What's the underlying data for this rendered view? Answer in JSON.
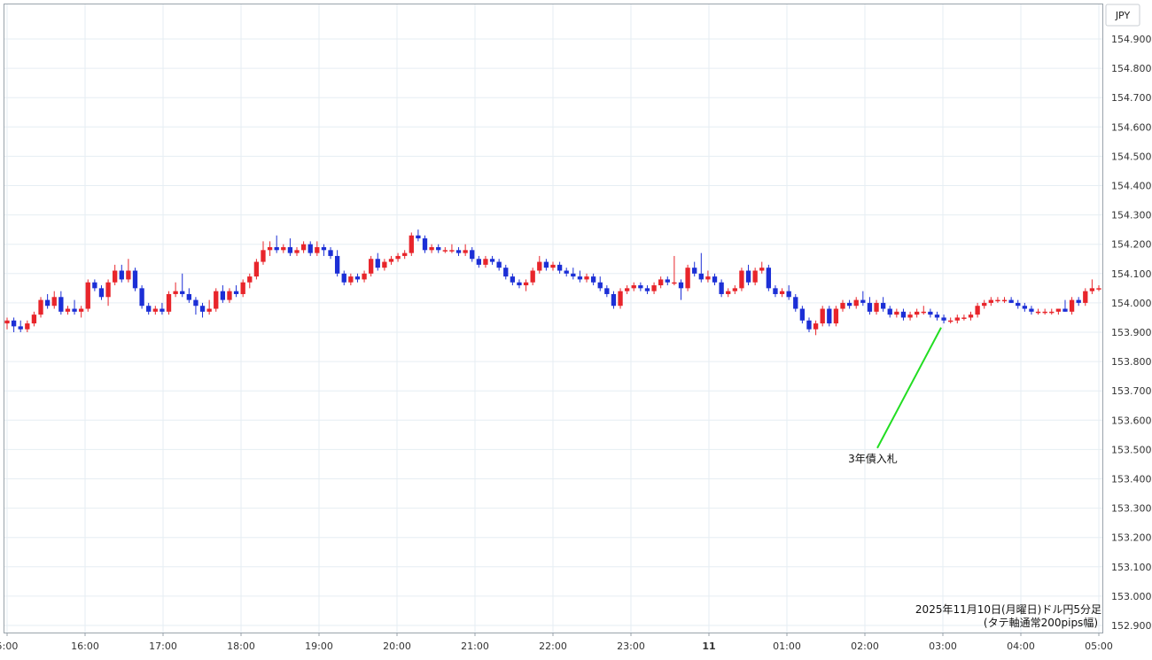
{
  "chart_data": {
    "type": "candlestick",
    "currency": "JPY",
    "y_ticks": [
      "154.900",
      "154.800",
      "154.700",
      "154.600",
      "154.500",
      "154.400",
      "154.300",
      "154.200",
      "154.100",
      "154.000",
      "153.900",
      "153.800",
      "153.700",
      "153.600",
      "153.500",
      "153.400",
      "153.300",
      "153.200",
      "153.100",
      "153.000",
      "152.900"
    ],
    "ylim": [
      152.89,
      154.96
    ],
    "x_ticks": [
      "5:00",
      "16:00",
      "17:00",
      "18:00",
      "19:00",
      "20:00",
      "21:00",
      "22:00",
      "23:00",
      "11",
      "01:00",
      "02:00",
      "03:00",
      "04:00",
      "05:00"
    ],
    "annotation": {
      "label": "3年債入札",
      "at_time": "03:00",
      "price": 153.94
    },
    "caption": {
      "line1": "2025年11月10日(月曜日)ドル円5分足",
      "line2": "(タテ軸通常200pips幅)"
    },
    "colors": {
      "up": "#e8252b",
      "down": "#1c2fd6",
      "annotation_line": "#22dd22"
    },
    "candles": [
      [
        153.93,
        153.95,
        153.91,
        153.94
      ],
      [
        153.94,
        153.95,
        153.9,
        153.92
      ],
      [
        153.92,
        153.94,
        153.9,
        153.91
      ],
      [
        153.91,
        153.94,
        153.9,
        153.93
      ],
      [
        153.93,
        153.97,
        153.92,
        153.96
      ],
      [
        153.96,
        154.02,
        153.95,
        154.01
      ],
      [
        154.01,
        154.03,
        153.98,
        153.99
      ],
      [
        153.99,
        154.04,
        153.98,
        154.02
      ],
      [
        154.02,
        154.04,
        153.96,
        153.97
      ],
      [
        153.97,
        153.99,
        153.96,
        153.98
      ],
      [
        153.98,
        154.01,
        153.96,
        153.97
      ],
      [
        153.97,
        153.99,
        153.95,
        153.98
      ],
      [
        153.98,
        154.08,
        153.97,
        154.07
      ],
      [
        154.07,
        154.08,
        154.04,
        154.05
      ],
      [
        154.05,
        154.06,
        154.01,
        154.02
      ],
      [
        154.02,
        154.08,
        153.99,
        154.07
      ],
      [
        154.07,
        154.13,
        154.06,
        154.11
      ],
      [
        154.11,
        154.13,
        154.07,
        154.08
      ],
      [
        154.08,
        154.15,
        154.07,
        154.11
      ],
      [
        154.11,
        154.12,
        154.04,
        154.05
      ],
      [
        154.05,
        154.06,
        153.98,
        153.99
      ],
      [
        153.99,
        154.0,
        153.96,
        153.97
      ],
      [
        153.97,
        153.99,
        153.96,
        153.98
      ],
      [
        153.98,
        154.0,
        153.96,
        153.97
      ],
      [
        153.97,
        154.04,
        153.96,
        154.03
      ],
      [
        154.03,
        154.07,
        154.02,
        154.04
      ],
      [
        154.04,
        154.1,
        154.02,
        154.03
      ],
      [
        154.03,
        154.05,
        154.0,
        154.01
      ],
      [
        154.01,
        154.02,
        153.96,
        153.99
      ],
      [
        153.99,
        154.0,
        153.95,
        153.97
      ],
      [
        153.97,
        154.01,
        153.96,
        153.98
      ],
      [
        153.98,
        154.05,
        153.97,
        154.04
      ],
      [
        154.04,
        154.06,
        154.0,
        154.01
      ],
      [
        154.01,
        154.05,
        154.0,
        154.04
      ],
      [
        154.04,
        154.06,
        154.02,
        154.03
      ],
      [
        154.03,
        154.08,
        154.02,
        154.07
      ],
      [
        154.07,
        154.1,
        154.05,
        154.09
      ],
      [
        154.09,
        154.15,
        154.08,
        154.14
      ],
      [
        154.14,
        154.21,
        154.13,
        154.18
      ],
      [
        154.18,
        154.21,
        154.16,
        154.19
      ],
      [
        154.19,
        154.23,
        154.17,
        154.18
      ],
      [
        154.18,
        154.2,
        154.17,
        154.19
      ],
      [
        154.19,
        154.22,
        154.16,
        154.17
      ],
      [
        154.17,
        154.19,
        154.16,
        154.18
      ],
      [
        154.18,
        154.21,
        154.17,
        154.2
      ],
      [
        154.2,
        154.21,
        154.16,
        154.17
      ],
      [
        154.17,
        154.21,
        154.16,
        154.19
      ],
      [
        154.19,
        154.2,
        154.16,
        154.18
      ],
      [
        154.18,
        154.19,
        154.15,
        154.16
      ],
      [
        154.16,
        154.18,
        154.09,
        154.1
      ],
      [
        154.1,
        154.11,
        154.06,
        154.07
      ],
      [
        154.07,
        154.1,
        154.06,
        154.09
      ],
      [
        154.09,
        154.1,
        154.07,
        154.08
      ],
      [
        154.08,
        154.11,
        154.07,
        154.1
      ],
      [
        154.1,
        154.16,
        154.09,
        154.15
      ],
      [
        154.15,
        154.17,
        154.11,
        154.12
      ],
      [
        154.12,
        154.15,
        154.11,
        154.14
      ],
      [
        154.14,
        154.16,
        154.13,
        154.15
      ],
      [
        154.15,
        154.17,
        154.14,
        154.16
      ],
      [
        154.16,
        154.18,
        154.15,
        154.17
      ],
      [
        154.17,
        154.24,
        154.16,
        154.23
      ],
      [
        154.23,
        154.25,
        154.21,
        154.22
      ],
      [
        154.22,
        154.23,
        154.17,
        154.18
      ],
      [
        154.18,
        154.2,
        154.17,
        154.19
      ],
      [
        154.19,
        154.2,
        154.17,
        154.18
      ],
      [
        154.18,
        154.19,
        154.17,
        154.18
      ],
      [
        154.18,
        154.2,
        154.17,
        154.18
      ],
      [
        154.18,
        154.19,
        154.16,
        154.17
      ],
      [
        154.17,
        154.2,
        154.16,
        154.18
      ],
      [
        154.18,
        154.19,
        154.14,
        154.15
      ],
      [
        154.15,
        154.16,
        154.12,
        154.13
      ],
      [
        154.13,
        154.16,
        154.12,
        154.15
      ],
      [
        154.15,
        154.16,
        154.13,
        154.14
      ],
      [
        154.14,
        154.15,
        154.11,
        154.12
      ],
      [
        154.12,
        154.13,
        154.08,
        154.09
      ],
      [
        154.09,
        154.1,
        154.06,
        154.07
      ],
      [
        154.07,
        154.08,
        154.05,
        154.06
      ],
      [
        154.06,
        154.08,
        154.04,
        154.07
      ],
      [
        154.07,
        154.12,
        154.06,
        154.11
      ],
      [
        154.11,
        154.16,
        154.1,
        154.14
      ],
      [
        154.14,
        154.15,
        154.11,
        154.12
      ],
      [
        154.12,
        154.14,
        154.11,
        154.13
      ],
      [
        154.13,
        154.14,
        154.1,
        154.11
      ],
      [
        154.11,
        154.12,
        154.09,
        154.1
      ],
      [
        154.1,
        154.12,
        154.08,
        154.09
      ],
      [
        154.09,
        154.11,
        154.07,
        154.08
      ],
      [
        154.08,
        154.1,
        154.07,
        154.09
      ],
      [
        154.09,
        154.1,
        154.06,
        154.07
      ],
      [
        154.07,
        154.09,
        154.04,
        154.05
      ],
      [
        154.05,
        154.06,
        154.02,
        154.03
      ],
      [
        154.03,
        154.04,
        153.98,
        153.99
      ],
      [
        153.99,
        154.05,
        153.98,
        154.04
      ],
      [
        154.04,
        154.06,
        154.03,
        154.05
      ],
      [
        154.05,
        154.07,
        154.04,
        154.06
      ],
      [
        154.06,
        154.07,
        154.04,
        154.05
      ],
      [
        154.05,
        154.06,
        154.03,
        154.04
      ],
      [
        154.04,
        154.07,
        154.03,
        154.06
      ],
      [
        154.06,
        154.09,
        154.05,
        154.08
      ],
      [
        154.08,
        154.09,
        154.06,
        154.07
      ],
      [
        154.07,
        154.16,
        154.06,
        154.07
      ],
      [
        154.07,
        154.08,
        154.01,
        154.05
      ],
      [
        154.05,
        154.13,
        154.04,
        154.12
      ],
      [
        154.12,
        154.14,
        154.09,
        154.1
      ],
      [
        154.1,
        154.17,
        154.07,
        154.08
      ],
      [
        154.08,
        154.11,
        154.07,
        154.09
      ],
      [
        154.09,
        154.1,
        154.06,
        154.07
      ],
      [
        154.07,
        154.08,
        154.02,
        154.03
      ],
      [
        154.03,
        154.05,
        154.02,
        154.04
      ],
      [
        154.04,
        154.06,
        154.03,
        154.05
      ],
      [
        154.05,
        154.12,
        154.04,
        154.11
      ],
      [
        154.11,
        154.13,
        154.06,
        154.07
      ],
      [
        154.07,
        154.12,
        154.06,
        154.11
      ],
      [
        154.11,
        154.14,
        154.1,
        154.12
      ],
      [
        154.12,
        154.13,
        154.04,
        154.05
      ],
      [
        154.05,
        154.06,
        154.02,
        154.03
      ],
      [
        154.03,
        154.05,
        154.02,
        154.04
      ],
      [
        154.04,
        154.06,
        154.01,
        154.02
      ],
      [
        154.02,
        154.03,
        153.97,
        153.98
      ],
      [
        153.98,
        153.99,
        153.93,
        153.94
      ],
      [
        153.94,
        153.95,
        153.9,
        153.91
      ],
      [
        153.91,
        153.94,
        153.89,
        153.93
      ],
      [
        153.93,
        153.99,
        153.92,
        153.98
      ],
      [
        153.98,
        153.99,
        153.92,
        153.93
      ],
      [
        153.93,
        153.99,
        153.92,
        153.98
      ],
      [
        153.98,
        154.01,
        153.97,
        154.0
      ],
      [
        154.0,
        154.01,
        153.98,
        153.99
      ],
      [
        153.99,
        154.02,
        153.98,
        154.01
      ],
      [
        154.01,
        154.04,
        153.99,
        154.0
      ],
      [
        154.0,
        154.02,
        153.96,
        153.97
      ],
      [
        153.97,
        154.01,
        153.96,
        154.0
      ],
      [
        154.0,
        154.02,
        153.97,
        153.98
      ],
      [
        153.98,
        153.99,
        153.95,
        153.96
      ],
      [
        153.96,
        153.98,
        153.95,
        153.97
      ],
      [
        153.97,
        153.98,
        153.94,
        153.95
      ],
      [
        153.95,
        153.97,
        153.94,
        153.96
      ],
      [
        153.96,
        153.98,
        153.95,
        153.97
      ],
      [
        153.97,
        153.99,
        153.96,
        153.97
      ],
      [
        153.97,
        153.98,
        153.95,
        153.96
      ],
      [
        153.96,
        153.97,
        153.94,
        153.95
      ],
      [
        153.95,
        153.96,
        153.93,
        153.94
      ],
      [
        153.94,
        153.95,
        153.93,
        153.94
      ],
      [
        153.94,
        153.96,
        153.93,
        153.95
      ],
      [
        153.95,
        153.96,
        153.94,
        153.95
      ],
      [
        153.95,
        153.97,
        153.94,
        153.96
      ],
      [
        153.96,
        154.0,
        153.95,
        153.99
      ],
      [
        153.99,
        154.01,
        153.98,
        154.0
      ],
      [
        154.0,
        154.02,
        153.99,
        154.01
      ],
      [
        154.01,
        154.02,
        154.0,
        154.01
      ],
      [
        154.01,
        154.02,
        154.0,
        154.01
      ],
      [
        154.01,
        154.02,
        154.0,
        154.0
      ],
      [
        154.0,
        154.01,
        153.98,
        153.99
      ],
      [
        153.99,
        154.0,
        153.97,
        153.98
      ],
      [
        153.98,
        153.99,
        153.96,
        153.97
      ],
      [
        153.97,
        153.98,
        153.96,
        153.97
      ],
      [
        153.97,
        153.98,
        153.96,
        153.97
      ],
      [
        153.97,
        153.98,
        153.96,
        153.97
      ],
      [
        153.97,
        153.98,
        153.96,
        153.98
      ],
      [
        153.98,
        154.01,
        153.97,
        153.97
      ],
      [
        153.97,
        154.02,
        153.96,
        154.01
      ],
      [
        154.01,
        154.02,
        153.99,
        154.0
      ],
      [
        154.0,
        154.05,
        153.99,
        154.04
      ],
      [
        154.04,
        154.08,
        154.03,
        154.05
      ],
      [
        154.05,
        154.06,
        154.04,
        154.05
      ]
    ]
  }
}
